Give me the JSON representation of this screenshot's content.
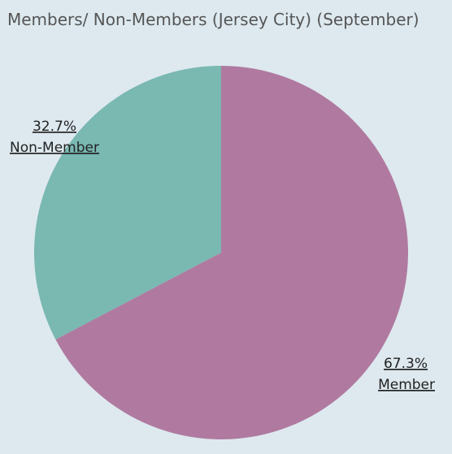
{
  "title": "Members/ Non-Members (Jersey City) (September)",
  "chart_data": {
    "type": "pie",
    "title": "Members/ Non-Members (Jersey City) (September)",
    "slices": [
      {
        "label": "Member",
        "value": 67.3,
        "value_label": "67.3%",
        "color": "#b07aa0"
      },
      {
        "label": "Non-Member",
        "value": 32.7,
        "value_label": "32.7%",
        "color": "#7ab8b2"
      }
    ],
    "start": "12 o'clock",
    "direction": "clockwise"
  }
}
